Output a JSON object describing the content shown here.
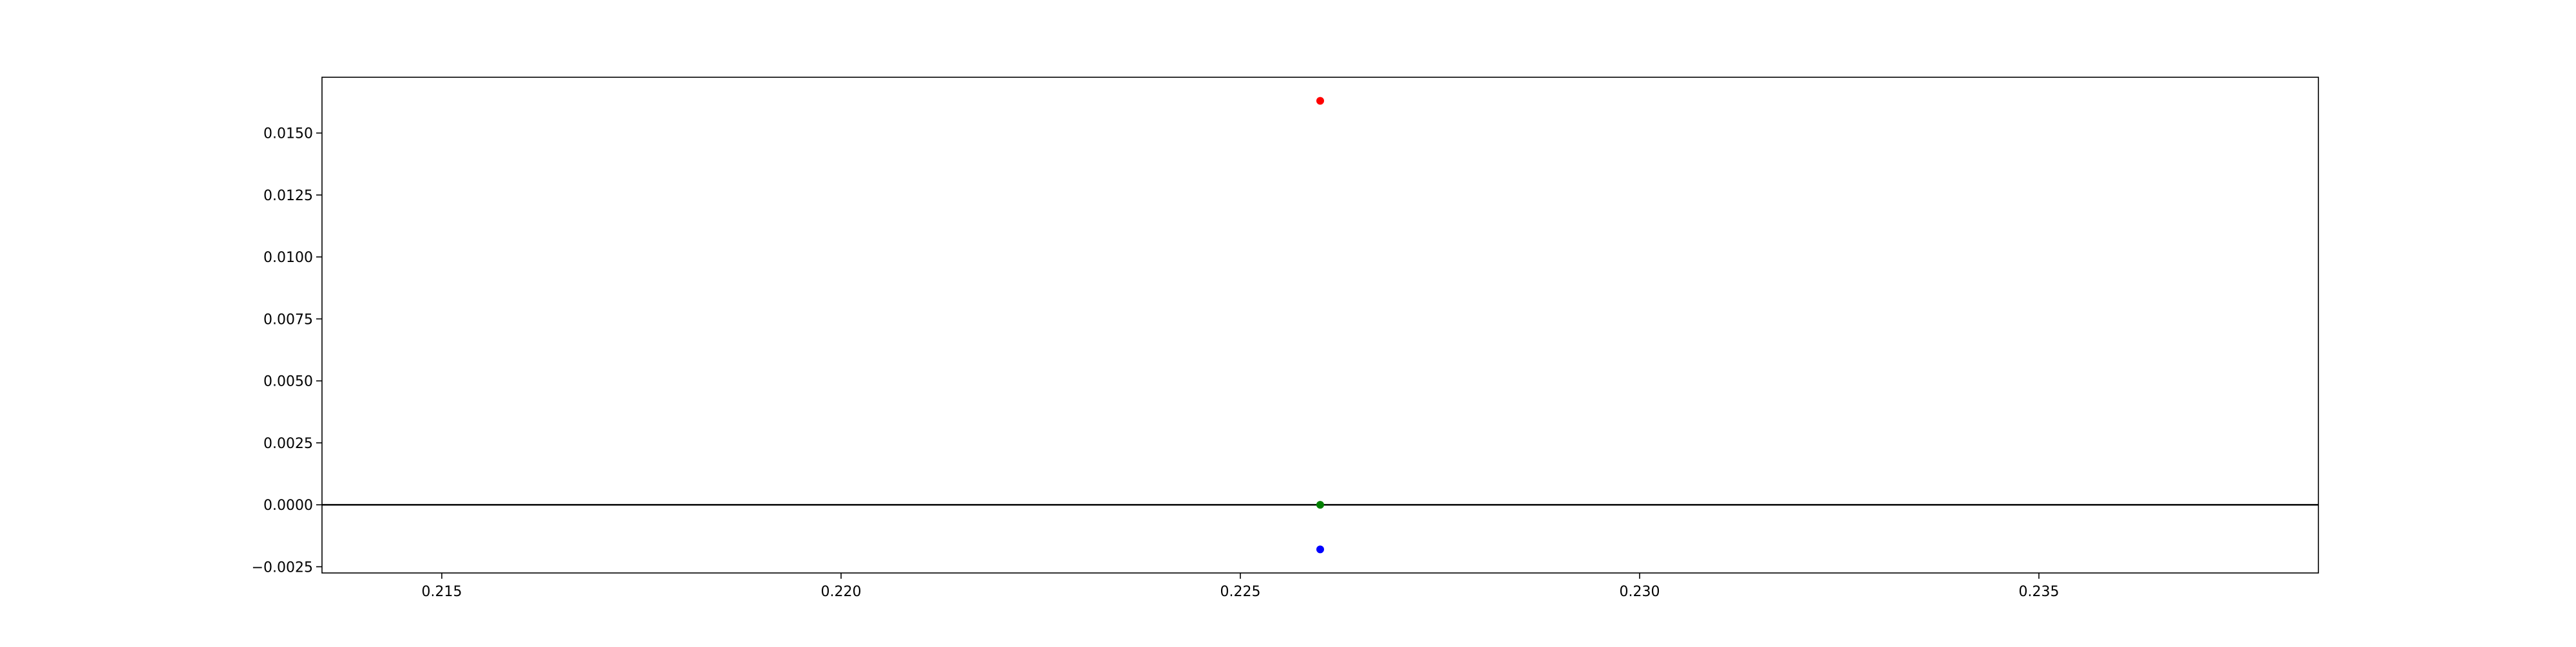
{
  "chart_data": {
    "type": "scatter",
    "title": "",
    "xlabel": "",
    "ylabel": "",
    "xlim": [
      0.2135,
      0.2385
    ],
    "ylim": [
      -0.00275,
      0.01725
    ],
    "xticks": [
      0.215,
      0.22,
      0.225,
      0.23,
      0.235
    ],
    "xtick_labels": [
      "0.215",
      "0.220",
      "0.225",
      "0.230",
      "0.235"
    ],
    "yticks": [
      -0.0025,
      0.0,
      0.0025,
      0.005,
      0.0075,
      0.01,
      0.0125,
      0.015
    ],
    "ytick_labels": [
      "−0.0025",
      "0.0000",
      "0.0025",
      "0.0050",
      "0.0075",
      "0.0100",
      "0.0125",
      "0.0150"
    ],
    "grid": false,
    "reference_line": {
      "y": 0.0,
      "color": "#000000"
    },
    "series": [
      {
        "color": "#ff0000",
        "points": [
          {
            "x": 0.226,
            "y": 0.0163
          }
        ]
      },
      {
        "color": "#008000",
        "points": [
          {
            "x": 0.226,
            "y": 0.0
          }
        ]
      },
      {
        "color": "#0000ff",
        "points": [
          {
            "x": 0.226,
            "y": -0.0018
          }
        ]
      }
    ]
  }
}
